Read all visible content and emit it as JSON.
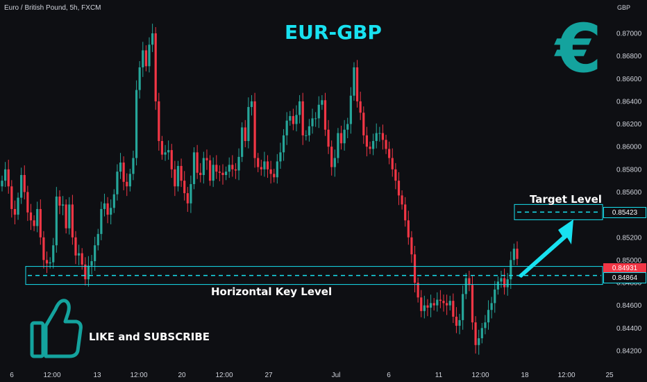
{
  "header": {
    "symbol": "Euro / British Pound, 5h, FXCM",
    "currency": "GBP"
  },
  "title": "EUR-GBP",
  "euro_symbol": "€",
  "annotations": {
    "target_label": "Target Level",
    "key_label": "Horizontal Key Level",
    "like_label": "LIKE and SUBSCRIBE"
  },
  "price_tags": {
    "target": "0.85423",
    "current": "0.84931",
    "key": "0.84864"
  },
  "colors": {
    "up": "#26a69a",
    "down": "#f23645",
    "accent": "#18e1f0",
    "icon": "#14a39e",
    "background": "#0e0f13"
  },
  "chart_data": {
    "type": "candlestick",
    "ylim": [
      0.841,
      0.873
    ],
    "y_ticks": [
      "0.87000",
      "0.86800",
      "0.86600",
      "0.86400",
      "0.86200",
      "0.86000",
      "0.85800",
      "0.85600",
      "0.85400",
      "0.85200",
      "0.85000",
      "0.84800",
      "0.84600",
      "0.84400",
      "0.84200"
    ],
    "x_ticks": [
      "6",
      "12:00",
      "13",
      "12:00",
      "20",
      "12:00",
      "27",
      "Jul",
      "6",
      "11",
      "12:00",
      "18",
      "12:00",
      "25"
    ],
    "target_level": 0.85423,
    "key_level": 0.84864,
    "close": [
      0.857,
      0.858,
      0.8565,
      0.8545,
      0.854,
      0.8555,
      0.8575,
      0.856,
      0.8542,
      0.8535,
      0.853,
      0.8545,
      0.852,
      0.85,
      0.8497,
      0.8498,
      0.8513,
      0.8556,
      0.8548,
      0.8549,
      0.8528,
      0.8549,
      0.852,
      0.8504,
      0.8506,
      0.8496,
      0.8483,
      0.8495,
      0.8499,
      0.8513,
      0.8523,
      0.8545,
      0.855,
      0.854,
      0.8546,
      0.8558,
      0.8578,
      0.8586,
      0.8569,
      0.8565,
      0.8576,
      0.859,
      0.865,
      0.867,
      0.8685,
      0.8671,
      0.869,
      0.87,
      0.864,
      0.8605,
      0.8593,
      0.8595,
      0.8597,
      0.858,
      0.8565,
      0.8583,
      0.857,
      0.8559,
      0.855,
      0.8567,
      0.8595,
      0.8577,
      0.8575,
      0.859,
      0.8588,
      0.857,
      0.8584,
      0.8578,
      0.8577,
      0.8575,
      0.8578,
      0.8584,
      0.858,
      0.8579,
      0.8591,
      0.8617,
      0.8605,
      0.8635,
      0.864,
      0.859,
      0.8582,
      0.858,
      0.8587,
      0.858,
      0.8576,
      0.8573,
      0.8587,
      0.8595,
      0.861,
      0.8623,
      0.8627,
      0.862,
      0.8628,
      0.864,
      0.861,
      0.861,
      0.8618,
      0.8625,
      0.8625,
      0.8637,
      0.8641,
      0.8615,
      0.86,
      0.8582,
      0.859,
      0.8612,
      0.8603,
      0.8615,
      0.862,
      0.8645,
      0.867,
      0.864,
      0.863,
      0.861,
      0.86,
      0.8598,
      0.8605,
      0.8612,
      0.8612,
      0.8606,
      0.8598,
      0.859,
      0.858,
      0.857,
      0.8557,
      0.8549,
      0.8535,
      0.852,
      0.8505,
      0.848,
      0.8467,
      0.8455,
      0.846,
      0.8458,
      0.8462,
      0.846,
      0.8465,
      0.8464,
      0.8462,
      0.846,
      0.8464,
      0.845,
      0.8442,
      0.8447,
      0.847,
      0.8484,
      0.8478,
      0.8445,
      0.8425,
      0.8431,
      0.844,
      0.8445,
      0.8456,
      0.8462,
      0.8474,
      0.8481,
      0.8484,
      0.8476,
      0.8483,
      0.85,
      0.851,
      0.8501
    ]
  }
}
